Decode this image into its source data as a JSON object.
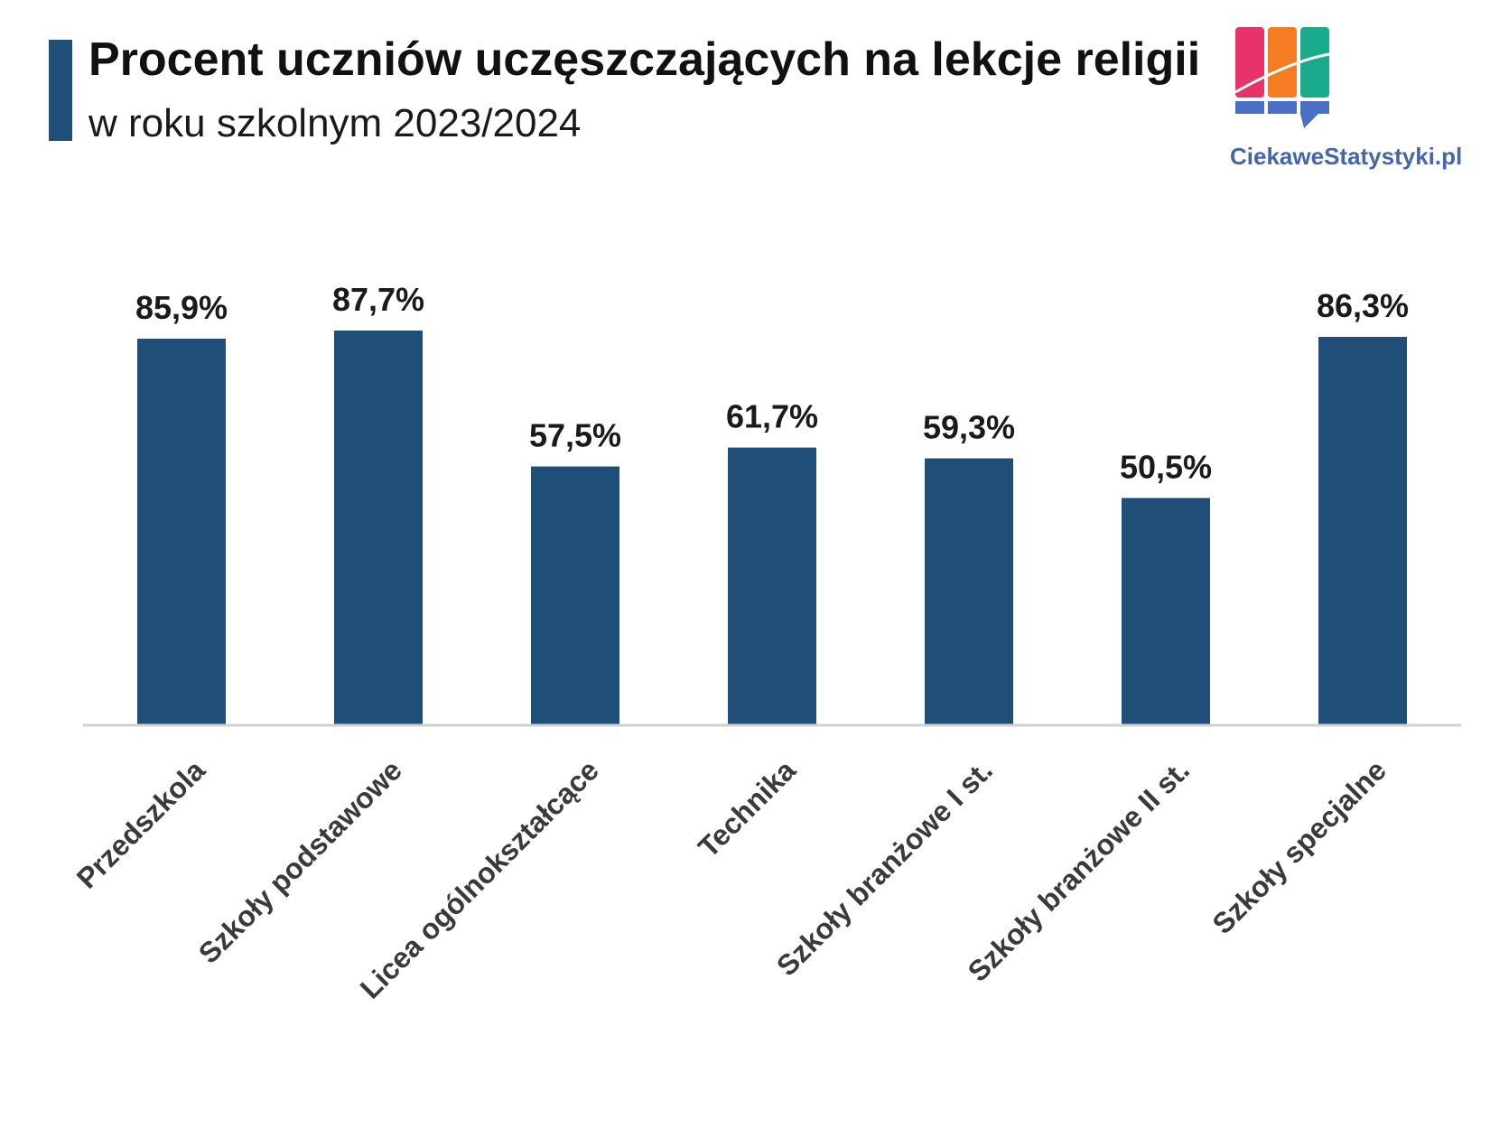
{
  "header": {
    "title": "Procent uczniów uczęszczających na lekcje religii",
    "subtitle": "w roku szkolnym 2023/2024"
  },
  "logo": {
    "text": "CiekaweStatystyki.pl",
    "icon": "chart-logo-icon",
    "colors": [
      "#e8336a",
      "#f57c22",
      "#1aaa8c",
      "#4a6fc4"
    ]
  },
  "chart_data": {
    "type": "bar",
    "title": "Procent uczniów uczęszczających na lekcje religii",
    "subtitle": "w roku szkolnym 2023/2024",
    "categories": [
      "Przedszkola",
      "Szkoły podstawowe",
      "Licea ogólnokształcące",
      "Technika",
      "Szkoły branżowe I st.",
      "Szkoły branżowe II st.",
      "Szkoły specjalne"
    ],
    "values": [
      85.9,
      87.7,
      57.5,
      61.7,
      59.3,
      50.5,
      86.3
    ],
    "labels": [
      "85,9%",
      "87,7%",
      "57,5%",
      "61,7%",
      "59,3%",
      "50,5%",
      "86,3%"
    ],
    "xlabel": "",
    "ylabel": "",
    "ylim": [
      0,
      100
    ],
    "grid": false,
    "bar_color": "#1f4e79"
  }
}
